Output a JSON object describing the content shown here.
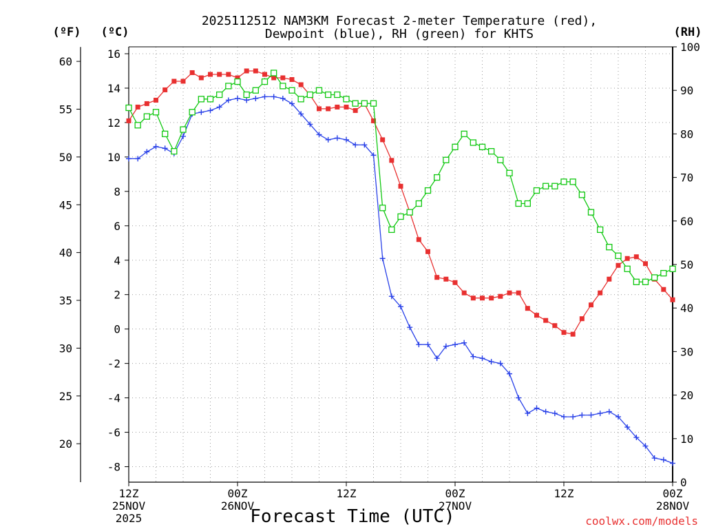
{
  "chart_data": {
    "type": "line",
    "title": "2025112512 NAM3KM Forecast 2-meter Temperature (red),",
    "subtitle": "Dewpoint (blue), RH (green) for KHTS",
    "xlabel": "Forecast Time (UTC)",
    "units": {
      "fahrenheit": "(ºF)",
      "celsius": "(ºC)",
      "rh": "(RH)"
    },
    "credit": "coolwx.com/models",
    "x_range_hours": [
      0,
      60
    ],
    "y_range_c": [
      -8.9,
      16.4
    ],
    "y_range_rh": [
      0,
      100
    ],
    "celsius_ticks": [
      16,
      14,
      12,
      10,
      8,
      6,
      4,
      2,
      0,
      -2,
      -4,
      -6,
      -8
    ],
    "fahrenheit_ticks": [
      60,
      55,
      50,
      45,
      40,
      35,
      30,
      25,
      20
    ],
    "rh_ticks": [
      100,
      90,
      80,
      70,
      60,
      50,
      40,
      30,
      20,
      10,
      0
    ],
    "x_ticks": [
      {
        "hour": 0,
        "time": "12Z",
        "date": "25NOV",
        "year": "2025"
      },
      {
        "hour": 12,
        "time": "00Z",
        "date": "26NOV",
        "year": ""
      },
      {
        "hour": 24,
        "time": "12Z",
        "date": "",
        "year": ""
      },
      {
        "hour": 36,
        "time": "00Z",
        "date": "27NOV",
        "year": ""
      },
      {
        "hour": 48,
        "time": "12Z",
        "date": "",
        "year": ""
      },
      {
        "hour": 60,
        "time": "00Z",
        "date": "28NOV",
        "year": ""
      }
    ],
    "series": [
      {
        "name": "Temperature",
        "axis": "celsius",
        "color": "#e83030",
        "marker": "filled-square",
        "values": [
          12.1,
          12.9,
          13.1,
          13.3,
          13.9,
          14.4,
          14.4,
          14.9,
          14.6,
          14.8,
          14.8,
          14.8,
          14.6,
          15.0,
          15.0,
          14.8,
          14.6,
          14.6,
          14.5,
          14.2,
          13.6,
          12.8,
          12.8,
          12.9,
          12.9,
          12.7,
          13.1,
          12.1,
          11.0,
          9.8,
          8.3,
          6.8,
          5.2,
          4.5,
          3.0,
          2.9,
          2.7,
          2.1,
          1.8,
          1.8,
          1.8,
          1.9,
          2.1,
          2.1,
          1.2,
          0.8,
          0.5,
          0.2,
          -0.2,
          -0.3,
          0.6,
          1.4,
          2.1,
          2.9,
          3.7,
          4.1,
          4.2,
          3.8,
          2.9,
          2.3,
          1.7
        ]
      },
      {
        "name": "Dewpoint",
        "axis": "celsius",
        "color": "#2840e8",
        "marker": "plus",
        "values": [
          9.9,
          9.9,
          10.3,
          10.6,
          10.5,
          10.2,
          11.2,
          12.5,
          12.6,
          12.7,
          12.9,
          13.3,
          13.4,
          13.3,
          13.4,
          13.5,
          13.5,
          13.4,
          13.1,
          12.5,
          11.9,
          11.3,
          11.0,
          11.1,
          11.0,
          10.7,
          10.7,
          10.1,
          4.1,
          1.9,
          1.3,
          0.1,
          -0.9,
          -0.9,
          -1.7,
          -1.0,
          -0.9,
          -0.8,
          -1.6,
          -1.7,
          -1.9,
          -2.0,
          -2.6,
          -4.0,
          -4.9,
          -4.6,
          -4.8,
          -4.9,
          -5.1,
          -5.1,
          -5.0,
          -5.0,
          -4.9,
          -4.8,
          -5.1,
          -5.7,
          -6.3,
          -6.8,
          -7.5,
          -7.6,
          -7.8
        ]
      },
      {
        "name": "RH",
        "axis": "rh",
        "color": "#10c810",
        "marker": "open-square",
        "values": [
          86,
          82,
          84,
          85,
          80,
          76,
          81,
          85,
          88,
          88,
          89,
          91,
          92,
          89,
          90,
          92,
          94,
          91,
          90,
          88,
          89,
          90,
          89,
          89,
          88,
          87,
          87,
          87,
          63,
          58,
          61,
          62,
          64,
          67,
          70,
          74,
          77,
          80,
          78,
          77,
          76,
          74,
          71,
          64,
          64,
          67,
          68,
          68,
          69,
          69,
          66,
          62,
          58,
          54,
          52,
          49,
          46,
          46,
          47,
          48,
          49
        ]
      }
    ]
  }
}
